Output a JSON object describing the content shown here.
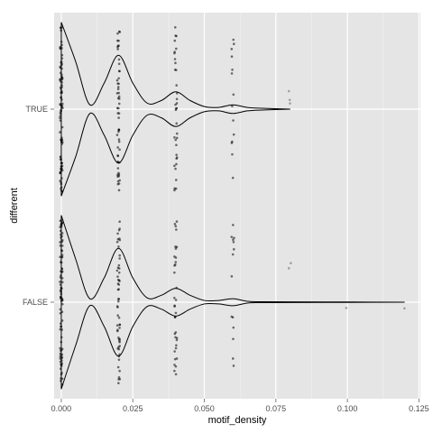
{
  "chart_data": {
    "type": "violin",
    "title": "",
    "xlabel": "motif_density",
    "ylabel": "different",
    "xlim": [
      -0.0025,
      0.1255
    ],
    "x_ticks": [
      0.0,
      0.025,
      0.05,
      0.075,
      0.1,
      0.125
    ],
    "x_tick_labels": [
      "0.000",
      "0.025",
      "0.050",
      "0.075",
      "0.100",
      "0.125"
    ],
    "categories": [
      "FALSE",
      "TRUE"
    ],
    "grid": true,
    "legend": "none",
    "colors": {
      "panel": "#e5e5e5",
      "grid": "#ffffff",
      "outline": "#000000",
      "points": "#000000"
    },
    "groups": [
      {
        "name": "TRUE",
        "density_profile": [
          [
            0.0,
            1.0
          ],
          [
            0.005,
            0.55
          ],
          [
            0.01,
            0.05
          ],
          [
            0.015,
            0.3
          ],
          [
            0.02,
            0.62
          ],
          [
            0.025,
            0.3
          ],
          [
            0.03,
            0.07
          ],
          [
            0.035,
            0.1
          ],
          [
            0.04,
            0.2
          ],
          [
            0.045,
            0.1
          ],
          [
            0.05,
            0.03
          ],
          [
            0.055,
            0.02
          ],
          [
            0.06,
            0.05
          ],
          [
            0.065,
            0.02
          ],
          [
            0.07,
            0.01
          ],
          [
            0.08,
            0.0
          ]
        ],
        "points": [
          {
            "x": 0.0,
            "count": 90,
            "spread": 0.95
          },
          {
            "x": 0.02,
            "count": 55,
            "spread": 0.95
          },
          {
            "x": 0.04,
            "count": 35,
            "spread": 0.95
          },
          {
            "x": 0.06,
            "count": 14,
            "spread": 0.95
          },
          {
            "x": 0.08,
            "count": 3,
            "spread": 0.45
          }
        ]
      },
      {
        "name": "FALSE",
        "density_profile": [
          [
            0.0,
            1.0
          ],
          [
            0.005,
            0.5
          ],
          [
            0.01,
            0.04
          ],
          [
            0.015,
            0.28
          ],
          [
            0.02,
            0.62
          ],
          [
            0.025,
            0.28
          ],
          [
            0.03,
            0.05
          ],
          [
            0.035,
            0.08
          ],
          [
            0.04,
            0.16
          ],
          [
            0.045,
            0.08
          ],
          [
            0.05,
            0.02
          ],
          [
            0.055,
            0.02
          ],
          [
            0.06,
            0.04
          ],
          [
            0.065,
            0.01
          ],
          [
            0.07,
            0.005
          ],
          [
            0.08,
            0.004
          ],
          [
            0.1,
            0.002
          ],
          [
            0.12,
            0.0
          ]
        ],
        "points": [
          {
            "x": 0.0,
            "count": 90,
            "spread": 0.95
          },
          {
            "x": 0.02,
            "count": 55,
            "spread": 0.95
          },
          {
            "x": 0.04,
            "count": 35,
            "spread": 0.95
          },
          {
            "x": 0.06,
            "count": 14,
            "spread": 0.95
          },
          {
            "x": 0.08,
            "count": 2,
            "spread": 0.45
          },
          {
            "x": 0.1,
            "count": 1,
            "spread": 0.45
          },
          {
            "x": 0.12,
            "count": 1,
            "spread": 0.15
          }
        ]
      }
    ]
  }
}
